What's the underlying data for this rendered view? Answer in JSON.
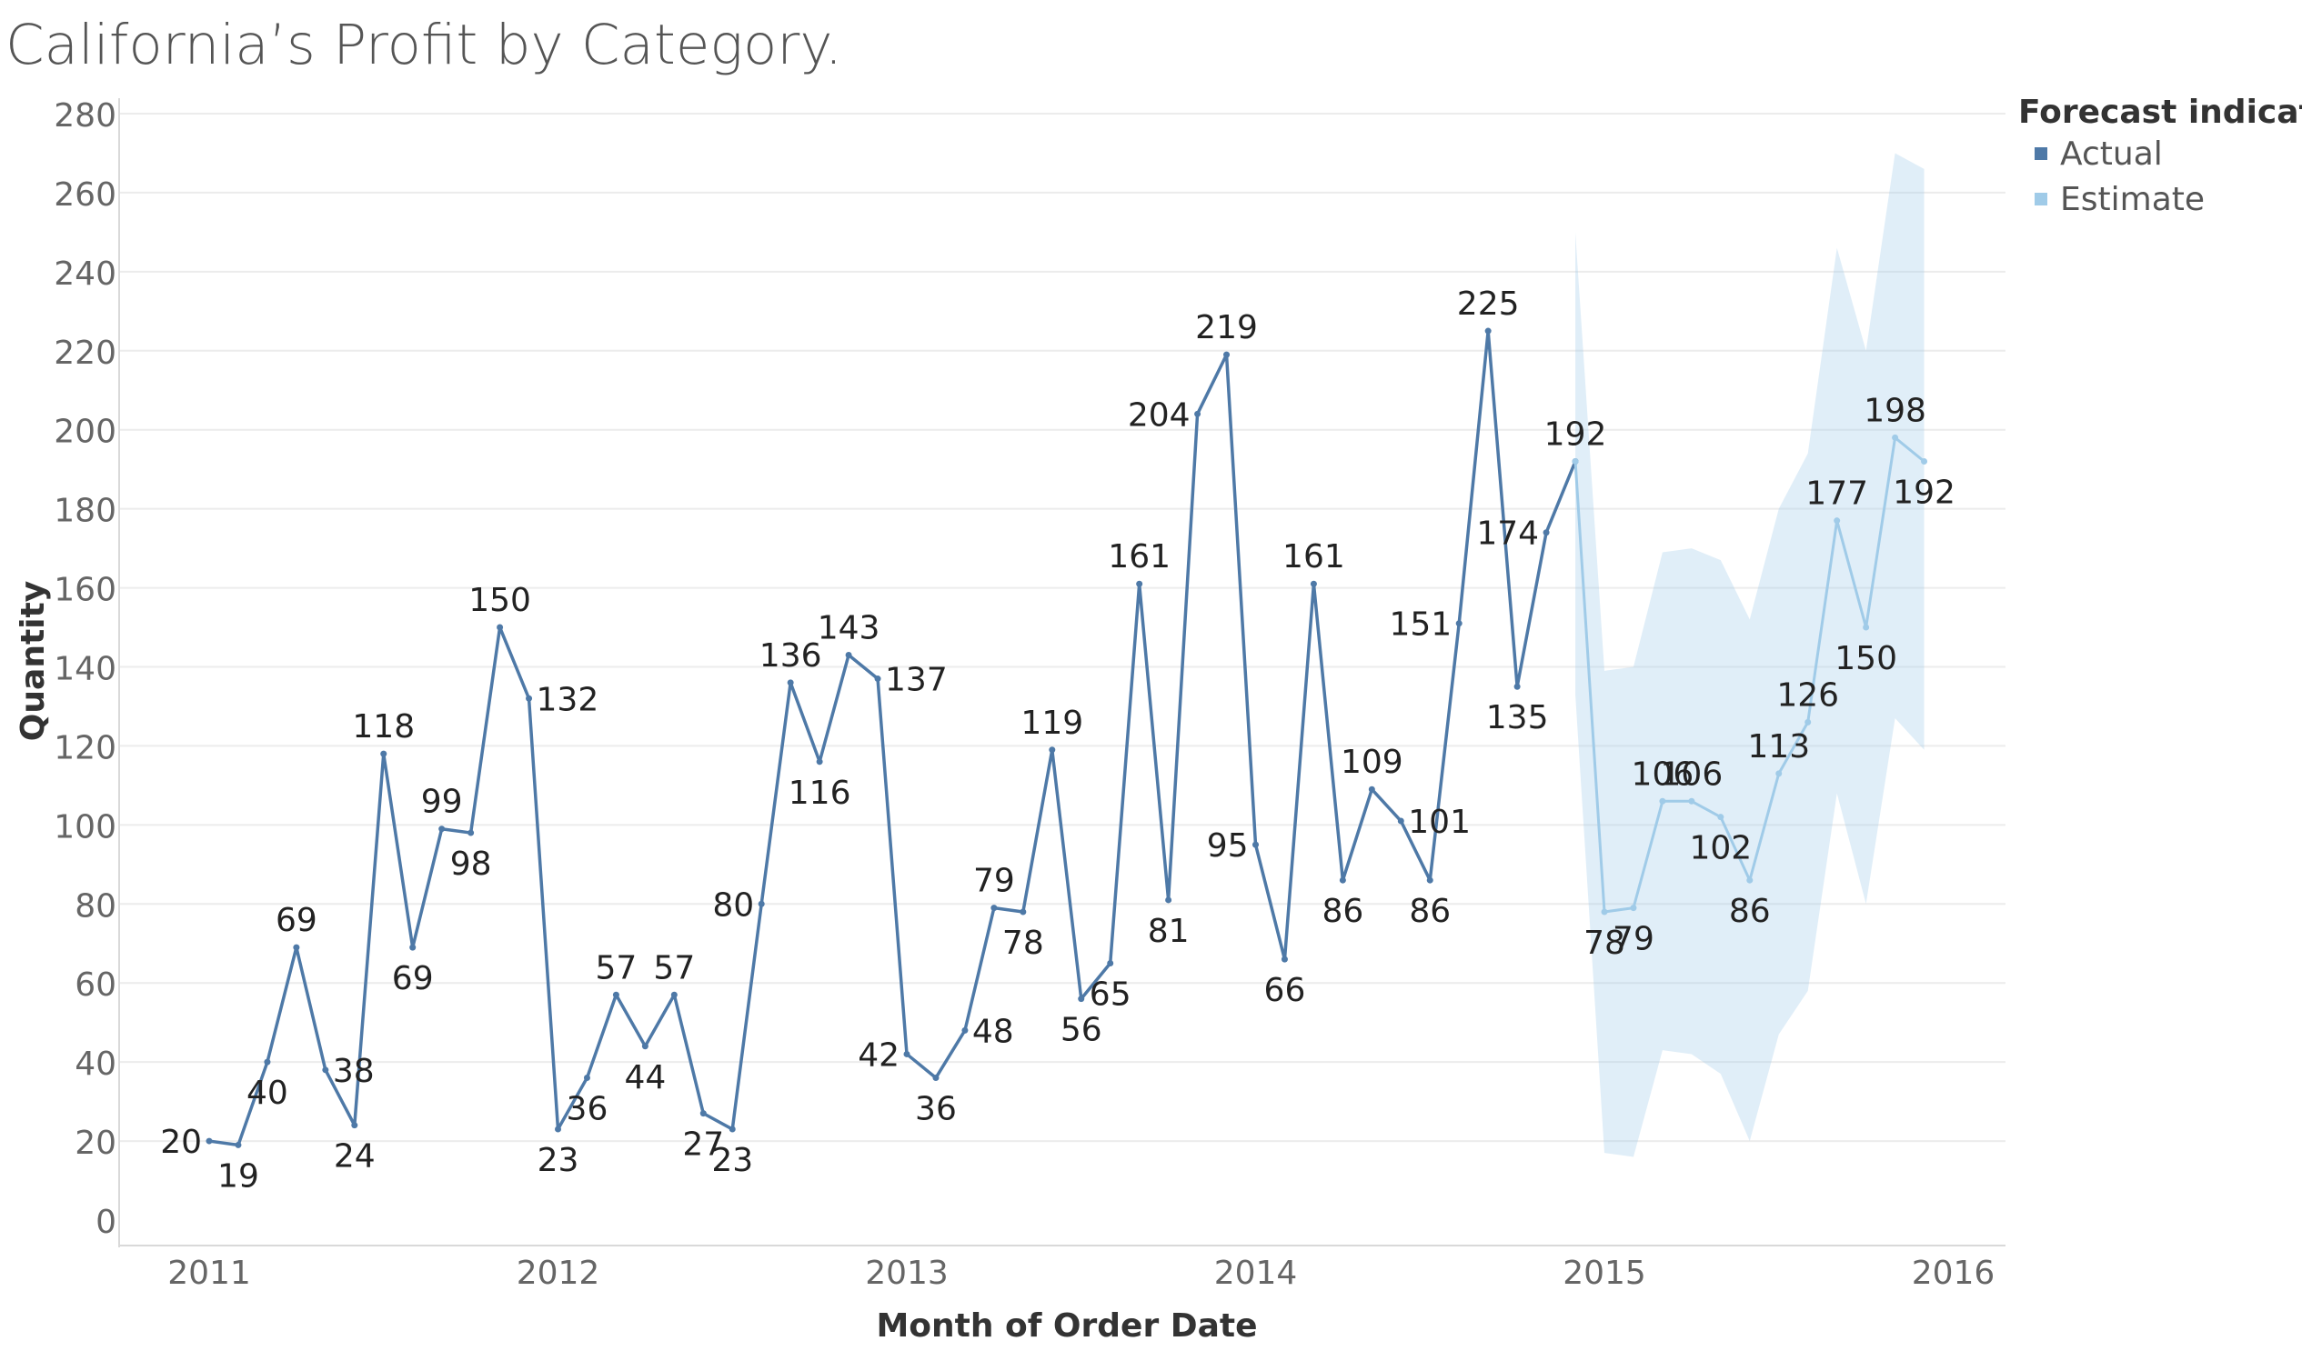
{
  "title": "California’s Profit by Category.",
  "legend": {
    "title": "Forecast indicator",
    "items": [
      {
        "label": "Actual",
        "color": "#4e79a7"
      },
      {
        "label": "Estimate",
        "color": "#a0cbe8"
      }
    ]
  },
  "chart_data": {
    "type": "line",
    "title": "California’s Profit by Category.",
    "xlabel": "Month of Order Date",
    "ylabel": "Quantity",
    "ylim": [
      0,
      280
    ],
    "yticks": [
      0,
      20,
      40,
      60,
      80,
      100,
      120,
      140,
      160,
      180,
      200,
      220,
      240,
      260,
      280
    ],
    "xticks": [
      "2011",
      "2012",
      "2013",
      "2014",
      "2015",
      "2016"
    ],
    "grid": true,
    "legend_position": "top-right",
    "series": [
      {
        "name": "Actual",
        "color": "#4e79a7",
        "x": [
          "2011-01",
          "2011-02",
          "2011-03",
          "2011-04",
          "2011-05",
          "2011-06",
          "2011-07",
          "2011-08",
          "2011-09",
          "2011-10",
          "2011-11",
          "2011-12",
          "2012-01",
          "2012-02",
          "2012-03",
          "2012-04",
          "2012-05",
          "2012-06",
          "2012-07",
          "2012-08",
          "2012-09",
          "2012-10",
          "2012-11",
          "2012-12",
          "2013-01",
          "2013-02",
          "2013-03",
          "2013-04",
          "2013-05",
          "2013-06",
          "2013-07",
          "2013-08",
          "2013-09",
          "2013-10",
          "2013-11",
          "2013-12",
          "2014-01",
          "2014-02",
          "2014-03",
          "2014-04",
          "2014-05",
          "2014-06",
          "2014-07",
          "2014-08",
          "2014-09",
          "2014-10",
          "2014-11",
          "2014-12"
        ],
        "values": [
          20,
          19,
          40,
          69,
          38,
          24,
          118,
          69,
          99,
          98,
          150,
          132,
          23,
          36,
          57,
          44,
          57,
          27,
          23,
          80,
          136,
          116,
          143,
          137,
          42,
          36,
          48,
          79,
          78,
          119,
          56,
          65,
          161,
          81,
          204,
          219,
          95,
          66,
          161,
          86,
          109,
          101,
          86,
          151,
          225,
          135,
          174,
          192
        ]
      },
      {
        "name": "Estimate",
        "color": "#a0cbe8",
        "x": [
          "2014-12",
          "2015-01",
          "2015-02",
          "2015-03",
          "2015-04",
          "2015-05",
          "2015-06",
          "2015-07",
          "2015-08",
          "2015-09",
          "2015-10",
          "2015-11",
          "2015-12"
        ],
        "values": [
          192,
          78,
          79,
          106,
          106,
          102,
          86,
          113,
          126,
          177,
          150,
          198,
          192
        ],
        "band_upper": [
          250,
          139,
          140,
          169,
          170,
          167,
          152,
          180,
          194,
          246,
          220,
          270,
          266
        ],
        "band_lower": [
          133,
          17,
          16,
          43,
          42,
          37,
          20,
          47,
          58,
          108,
          80,
          127,
          119
        ]
      }
    ]
  }
}
